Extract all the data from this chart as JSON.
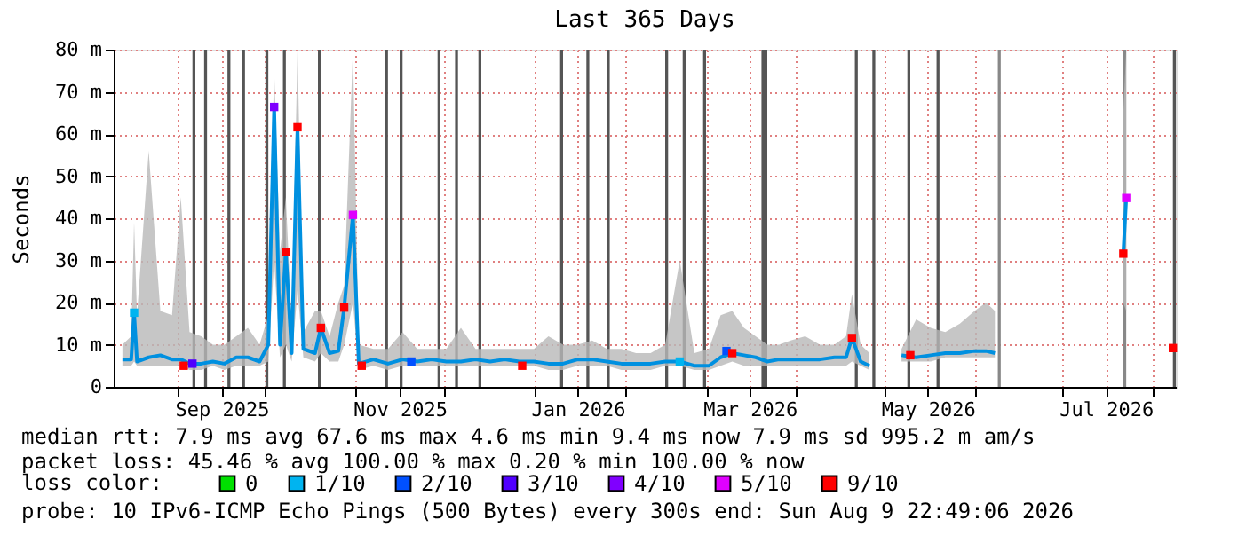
{
  "chart_data": {
    "type": "line",
    "title": "Last 365 Days",
    "ylabel": "Seconds",
    "legend_title": "loss color:",
    "legend": "bottom",
    "grid": true,
    "xlim": [
      "2025-08-10",
      "2026-08-09"
    ],
    "xticks": [
      {
        "value": "2025-09-01",
        "label": null
      },
      {
        "value": "2025-09-16",
        "label": "Sep 2025"
      },
      {
        "value": "2025-10-01",
        "label": null
      },
      {
        "value": "2025-11-01",
        "label": null
      },
      {
        "value": "2025-11-16",
        "label": "Nov 2025"
      },
      {
        "value": "2025-12-01",
        "label": null
      },
      {
        "value": "2026-01-01",
        "label": null
      },
      {
        "value": "2026-01-16",
        "label": "Jan 2026"
      },
      {
        "value": "2026-02-01",
        "label": null
      },
      {
        "value": "2026-03-01",
        "label": null
      },
      {
        "value": "2026-03-16",
        "label": "Mar 2026"
      },
      {
        "value": "2026-04-01",
        "label": null
      },
      {
        "value": "2026-05-01",
        "label": null
      },
      {
        "value": "2026-05-16",
        "label": "May 2026"
      },
      {
        "value": "2026-06-01",
        "label": null
      },
      {
        "value": "2026-07-01",
        "label": null
      },
      {
        "value": "2026-07-16",
        "label": "Jul 2026"
      },
      {
        "value": "2026-08-01",
        "label": null
      }
    ],
    "ylim": [
      0,
      80
    ],
    "yticks": [
      0,
      {
        "value": 10,
        "label": "10 m"
      },
      {
        "value": 20,
        "label": "20 m"
      },
      {
        "value": 30,
        "label": "30 m"
      },
      {
        "value": 40,
        "label": "40 m"
      },
      {
        "value": 50,
        "label": "50 m"
      },
      {
        "value": 60,
        "label": "60 m"
      },
      {
        "value": 70,
        "label": "70 m"
      },
      {
        "value": 80,
        "label": "80 m"
      }
    ],
    "bands": [
      {
        "axis": "x",
        "from": "2025-09-06",
        "to": "2025-09-07",
        "color": "#555555"
      },
      {
        "axis": "x",
        "from": "2025-09-10",
        "to": "2025-09-11",
        "color": "#555555"
      },
      {
        "axis": "x",
        "from": "2025-09-18",
        "to": "2025-09-19",
        "color": "#555555"
      },
      {
        "axis": "x",
        "from": "2025-09-23",
        "to": "2025-09-24",
        "color": "#555555"
      },
      {
        "axis": "x",
        "from": "2025-10-01",
        "to": "2025-10-02",
        "color": "#555555"
      },
      {
        "axis": "x",
        "from": "2025-10-07",
        "to": "2025-10-08",
        "color": "#555555"
      },
      {
        "axis": "x",
        "from": "2025-10-19",
        "to": "2025-10-20",
        "color": "#555555"
      },
      {
        "axis": "x",
        "from": "2025-11-11",
        "to": "2025-11-12",
        "color": "#555555"
      },
      {
        "axis": "x",
        "from": "2025-11-16",
        "to": "2025-11-17",
        "color": "#555555"
      },
      {
        "axis": "x",
        "from": "2025-11-29",
        "to": "2025-11-30",
        "color": "#555555"
      },
      {
        "axis": "x",
        "from": "2025-12-05",
        "to": "2025-12-06",
        "color": "#555555"
      },
      {
        "axis": "x",
        "from": "2025-12-13",
        "to": "2025-12-14",
        "color": "#555555"
      },
      {
        "axis": "x",
        "from": "2026-01-10",
        "to": "2026-01-11",
        "color": "#555555"
      },
      {
        "axis": "x",
        "from": "2026-01-19",
        "to": "2026-01-20",
        "color": "#555555"
      },
      {
        "axis": "x",
        "from": "2026-01-26",
        "to": "2026-01-27",
        "color": "#555555"
      },
      {
        "axis": "x",
        "from": "2026-02-15",
        "to": "2026-02-16",
        "color": "#555555"
      },
      {
        "axis": "x",
        "from": "2026-02-21",
        "to": "2026-02-22",
        "color": "#555555"
      },
      {
        "axis": "x",
        "from": "2026-02-28",
        "to": "2026-03-01",
        "color": "#555555"
      },
      {
        "axis": "x",
        "from": "2026-03-20",
        "to": "2026-03-22",
        "color": "#555555"
      },
      {
        "axis": "x",
        "from": "2026-04-21",
        "to": "2026-04-22",
        "color": "#555555"
      },
      {
        "axis": "x",
        "from": "2026-04-27",
        "to": "2026-04-28",
        "color": "#555555"
      },
      {
        "axis": "x",
        "from": "2026-05-09",
        "to": "2026-05-10",
        "color": "#555555"
      },
      {
        "axis": "x",
        "from": "2026-05-19",
        "to": "2026-05-20",
        "color": "#555555"
      },
      {
        "axis": "x",
        "from": "2026-06-09",
        "to": "2026-06-10",
        "color": "#888888"
      },
      {
        "axis": "x",
        "from": "2026-07-22",
        "to": "2026-07-23",
        "color": "#888888"
      },
      {
        "axis": "x",
        "from": "2026-08-08",
        "to": "2026-08-09",
        "color": "#555555"
      }
    ],
    "series": [
      {
        "marker": "none",
        "color": "#0090e0",
        "x": [
          "2025-08-13",
          "2025-08-16",
          "2025-08-17",
          "2025-08-18",
          "2025-08-22",
          "2025-08-26",
          "2025-08-30",
          "2025-09-02",
          "2025-09-05",
          "2025-09-09",
          "2025-09-13",
          "2025-09-17",
          "2025-09-21",
          "2025-09-25",
          "2025-09-29",
          "2025-10-02",
          "2025-10-04",
          "2025-10-06",
          "2025-10-08",
          "2025-10-10",
          "2025-10-12",
          "2025-10-14",
          "2025-10-18",
          "2025-10-20",
          "2025-10-23",
          "2025-10-26",
          "2025-10-28",
          "2025-10-31",
          "2025-11-02",
          "2025-11-07",
          "2025-11-12",
          "2025-11-17",
          "2025-11-22",
          "2025-11-27",
          "2025-12-02",
          "2025-12-07",
          "2025-12-12",
          "2025-12-17",
          "2025-12-22",
          "2025-12-27",
          "2026-01-01",
          "2026-01-06",
          "2026-01-11",
          "2026-01-16",
          "2026-01-21",
          "2026-01-26",
          "2026-01-31",
          "2026-02-05",
          "2026-02-10",
          "2026-02-15",
          "2026-02-20",
          "2026-02-25",
          "2026-03-02",
          "2026-03-06",
          "2026-03-10",
          "2026-03-14",
          "2026-03-18",
          "2026-03-22",
          "2026-03-26",
          "2026-03-30",
          "2026-04-04",
          "2026-04-09",
          "2026-04-14",
          "2026-04-18",
          "2026-04-20",
          "2026-04-23",
          "2026-04-26",
          "2026-04-30",
          "2026-05-07",
          "2026-05-12",
          "2026-05-17",
          "2026-05-22",
          "2026-05-27",
          "2026-06-01",
          "2026-06-05",
          "2026-06-08",
          "2026-06-15",
          "2026-07-22",
          "2026-07-23"
        ],
        "values": [
          6.5,
          6.5,
          17.6,
          6,
          7,
          7.5,
          6.5,
          6.5,
          5.5,
          5.5,
          6,
          5.5,
          7,
          7,
          6,
          10,
          66.4,
          10,
          32,
          8,
          61.6,
          9,
          8,
          14,
          8,
          8.5,
          18.8,
          40.8,
          5.5,
          6.5,
          5.5,
          6.5,
          6,
          6.5,
          6,
          6,
          6.5,
          6,
          6.5,
          6,
          6,
          5.5,
          5.5,
          6.5,
          6.5,
          6,
          5.5,
          5.5,
          5.5,
          6,
          6,
          5,
          5,
          7,
          8,
          7.5,
          7,
          6,
          6.5,
          6.5,
          6.5,
          6.5,
          7,
          7,
          11.6,
          6,
          5,
          null,
          7.5,
          7,
          7.5,
          8,
          8,
          8.5,
          8.5,
          8,
          null,
          31.6,
          44.8
        ],
        "lower": [
          5,
          5,
          6,
          5,
          5,
          5,
          5,
          5,
          4,
          4,
          5,
          4,
          5,
          5,
          5,
          6,
          30,
          7,
          10,
          6,
          23,
          7,
          6,
          8,
          6,
          6,
          10,
          20,
          4,
          5,
          4,
          5,
          5,
          5,
          5,
          5,
          5,
          5,
          5,
          5,
          5,
          4,
          4,
          5,
          5,
          5,
          4,
          4,
          4,
          5,
          5,
          4,
          4,
          5,
          6,
          5,
          5,
          5,
          5,
          5,
          5,
          5,
          5,
          5,
          6,
          5,
          4,
          null,
          6,
          6,
          6,
          7,
          7,
          7,
          7,
          7,
          null,
          20,
          18
        ],
        "upper": [
          10,
          12,
          39,
          17,
          56,
          18,
          17,
          45,
          13,
          12,
          10,
          10,
          12,
          14,
          10,
          17,
          75,
          32,
          45,
          15,
          80,
          13,
          18,
          18,
          12,
          20,
          24,
          80,
          10,
          9,
          9,
          13,
          9,
          9,
          9,
          14,
          9,
          9,
          9,
          9,
          9,
          12,
          10,
          10,
          11,
          9,
          9,
          8,
          8,
          10,
          30,
          8,
          9,
          17,
          18,
          14,
          12,
          10,
          10,
          11,
          12,
          10,
          10,
          12,
          22,
          10,
          8,
          null,
          9,
          16,
          14,
          13,
          15,
          18,
          20,
          18,
          null,
          65,
          80
        ]
      },
      {
        "type": "scatter",
        "marker": "square",
        "name": "0",
        "color": "#00e000"
      },
      {
        "type": "scatter",
        "marker": "square",
        "name": "1/10",
        "color": "#00b4f0",
        "x": [
          "2025-08-17",
          "2026-02-20"
        ],
        "values": [
          17.6,
          6
        ]
      },
      {
        "type": "scatter",
        "marker": "square",
        "name": "2/10",
        "color": "#0050ff",
        "x": [
          "2025-11-20",
          "2026-03-08"
        ],
        "values": [
          6,
          8.5
        ]
      },
      {
        "type": "scatter",
        "marker": "square",
        "name": "3/10",
        "color": "#5000ff",
        "x": [
          "2025-09-06"
        ],
        "values": [
          5.5
        ]
      },
      {
        "type": "scatter",
        "marker": "square",
        "name": "4/10",
        "color": "#8000ff",
        "x": [
          "2025-10-04"
        ],
        "values": [
          66.4
        ]
      },
      {
        "type": "scatter",
        "marker": "square",
        "name": "5/10",
        "color": "#e000ff",
        "x": [
          "2025-10-31",
          "2026-07-23"
        ],
        "values": [
          40.8,
          44.8
        ]
      },
      {
        "type": "scatter",
        "marker": "square",
        "name": "9/10",
        "color": "#ff0000",
        "x": [
          "2025-09-03",
          "2025-10-08",
          "2025-10-12",
          "2025-10-20",
          "2025-10-28",
          "2025-11-03",
          "2025-12-28",
          "2026-03-10",
          "2026-04-20",
          "2026-05-10",
          "2026-07-22",
          "2026-08-08"
        ],
        "values": [
          5,
          32,
          61.6,
          14,
          18.8,
          5,
          5,
          8,
          11.6,
          7.5,
          31.6,
          9.2
        ]
      }
    ],
    "annotations": [
      "median rtt:  7.9 ms avg  67.6 ms max  4.6 ms min  9.4 ms now  7.9 ms sd  995.2 m am/s",
      "packet loss: 45.46 % avg  100.00 % max  0.20 % min  100.00 % now",
      "probe:       10 IPv6-ICMP Echo Pings (500 Bytes) every 300s      end: Sun Aug  9 22:49:06 2026"
    ]
  }
}
